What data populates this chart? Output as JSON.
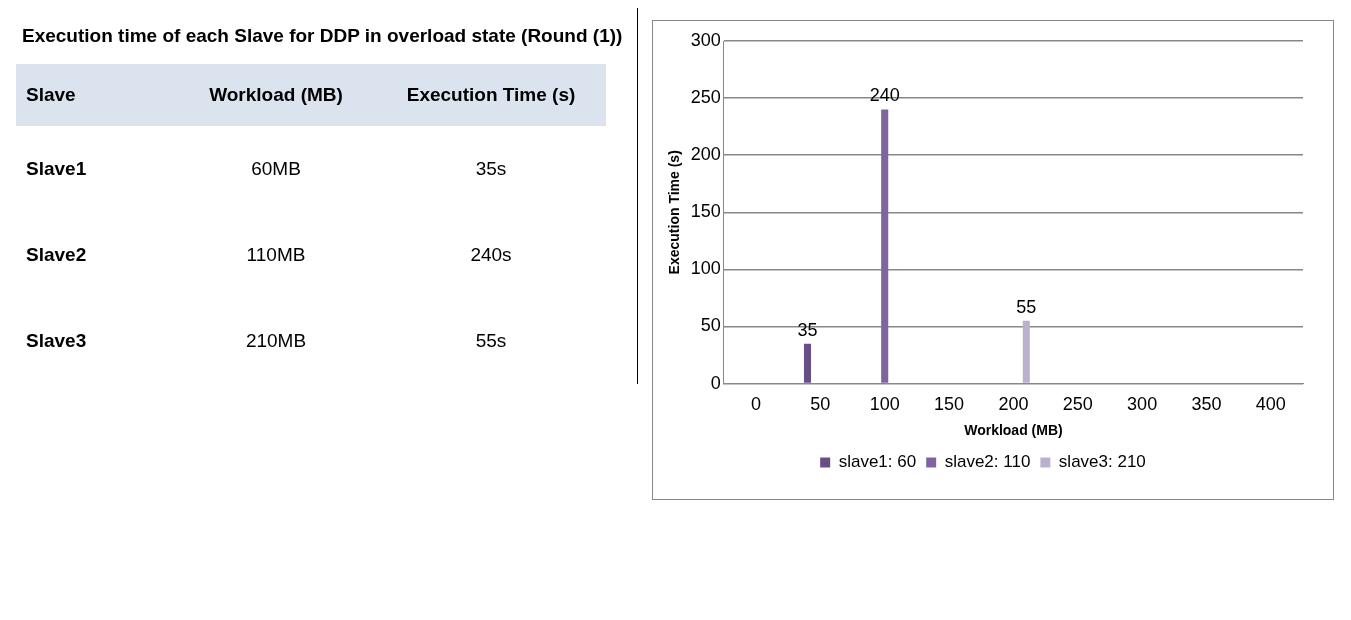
{
  "chart_data": [
    {
      "type": "other",
      "title": "Execution time of each Slave for DDP in overload state (Round (1))",
      "annotations": [
        "Slave",
        "Workload (MB)",
        "Execution Time (s)",
        "Slave1",
        "60MB",
        "35s",
        "Slave2",
        "110MB",
        "240s",
        "Slave3",
        "210MB",
        "55s"
      ]
    },
    {
      "type": "bar",
      "xlabel": "Workload (MB)",
      "ylabel": "Execution Time (s)",
      "categories": [
        "0",
        "50",
        "100",
        "150",
        "200",
        "250",
        "300",
        "350",
        "400"
      ],
      "series": [
        {
          "name": "slave1: 60",
          "color": "#674f86",
          "values": [
            null,
            35,
            null,
            null,
            null,
            null,
            null,
            null,
            null
          ]
        },
        {
          "name": "slave2: 110",
          "color": "#8064a2",
          "values": [
            null,
            null,
            240,
            null,
            null,
            null,
            null,
            null,
            null
          ]
        },
        {
          "name": "slave3: 210",
          "color": "#bcb0cf",
          "values": [
            null,
            null,
            null,
            null,
            55,
            null,
            null,
            null,
            null
          ]
        }
      ],
      "ylim": [
        0,
        300
      ],
      "yticks": [
        0,
        50,
        100,
        150,
        200,
        250,
        300
      ],
      "grid": "y",
      "legend": "bottom",
      "data_labels": true
    }
  ]
}
